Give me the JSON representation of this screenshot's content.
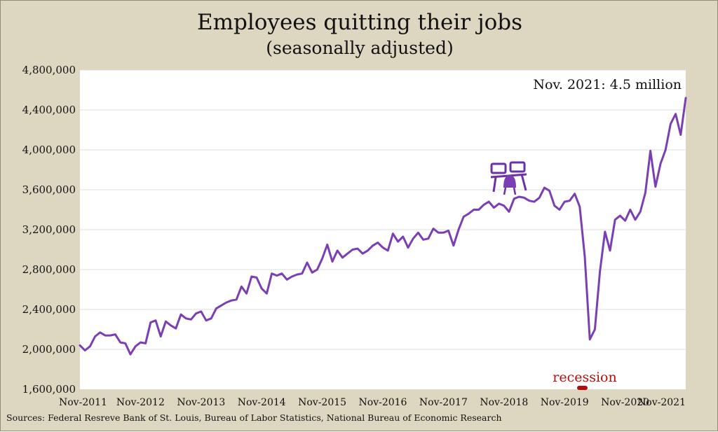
{
  "chart_data": {
    "type": "line",
    "title": "Employees quitting their jobs",
    "subtitle": "(seasonally adjusted)",
    "xlabel": "",
    "ylabel": "",
    "ylim": [
      1600000,
      4800000
    ],
    "yticks": [
      "1,600,000",
      "2,000,000",
      "2,400,000",
      "2,800,000",
      "3,200,000",
      "3,600,000",
      "4,000,000",
      "4,400,000",
      "4,800,000"
    ],
    "xticks": [
      "Nov-2011",
      "Nov-2012",
      "Nov-2013",
      "Nov-2014",
      "Nov-2015",
      "Nov-2016",
      "Nov-2017",
      "Nov-2018",
      "Nov-2019",
      "Nov-2020",
      "Nov-2021"
    ],
    "grid": true,
    "annotation": "Nov. 2021: 4.5 million",
    "recession_label": "recession",
    "source": "Sources: Federal Resreve Bank of St. Louis, Bureau of Labor Statistics, National Bureau of Economic Research",
    "series": [
      {
        "color": "#7a3fb3",
        "x_start": "Nov-2011",
        "values": [
          2040000,
          1990000,
          2030000,
          2130000,
          2170000,
          2140000,
          2140000,
          2150000,
          2070000,
          2060000,
          1950000,
          2030000,
          2070000,
          2060000,
          2270000,
          2290000,
          2130000,
          2280000,
          2240000,
          2210000,
          2350000,
          2310000,
          2300000,
          2360000,
          2380000,
          2290000,
          2310000,
          2410000,
          2440000,
          2470000,
          2490000,
          2500000,
          2630000,
          2560000,
          2730000,
          2720000,
          2610000,
          2560000,
          2760000,
          2740000,
          2760000,
          2700000,
          2730000,
          2750000,
          2760000,
          2870000,
          2770000,
          2800000,
          2910000,
          3050000,
          2880000,
          2990000,
          2920000,
          2960000,
          3000000,
          3010000,
          2960000,
          2990000,
          3040000,
          3070000,
          3020000,
          2990000,
          3160000,
          3080000,
          3130000,
          3020000,
          3110000,
          3170000,
          3100000,
          3110000,
          3210000,
          3170000,
          3170000,
          3190000,
          3040000,
          3200000,
          3330000,
          3360000,
          3400000,
          3400000,
          3450000,
          3480000,
          3420000,
          3460000,
          3440000,
          3380000,
          3510000,
          3530000,
          3520000,
          3490000,
          3480000,
          3520000,
          3620000,
          3590000,
          3440000,
          3400000,
          3480000,
          3490000,
          3560000,
          3430000,
          2930000,
          2100000,
          2200000,
          2780000,
          3180000,
          2990000,
          3300000,
          3340000,
          3290000,
          3400000,
          3300000,
          3380000,
          3570000,
          3990000,
          3630000,
          3860000,
          4000000,
          4260000,
          4360000,
          4150000,
          4520000
        ]
      }
    ]
  }
}
